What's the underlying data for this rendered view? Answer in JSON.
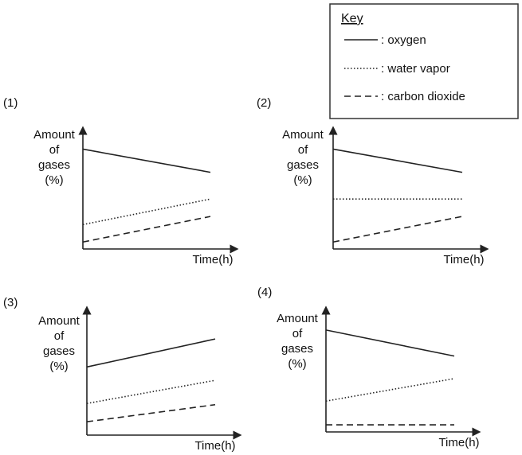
{
  "key": {
    "title": "Key",
    "entries": [
      {
        "label": ": oxygen",
        "style": "solid"
      },
      {
        "label": ": water vapor",
        "style": "dotted"
      },
      {
        "label": ": carbon dioxide",
        "style": "dashed"
      }
    ]
  },
  "chart_data": [
    {
      "type": "line",
      "option": "(1)",
      "ylabel": [
        "Amount",
        "of",
        "gases",
        "(%)"
      ],
      "xlabel": "Time(h)",
      "xlim": [
        0,
        1
      ],
      "ylim": [
        0,
        1
      ],
      "series": [
        {
          "name": "oxygen",
          "style": "solid",
          "x": [
            0,
            1
          ],
          "y": [
            0.86,
            0.66
          ]
        },
        {
          "name": "water vapor",
          "style": "dotted",
          "x": [
            0,
            1
          ],
          "y": [
            0.21,
            0.43
          ]
        },
        {
          "name": "carbon dioxide",
          "style": "dashed",
          "x": [
            0,
            1
          ],
          "y": [
            0.06,
            0.28
          ]
        }
      ]
    },
    {
      "type": "line",
      "option": "(2)",
      "ylabel": [
        "Amount",
        "of",
        "gases",
        "(%)"
      ],
      "xlabel": "Time(h)",
      "xlim": [
        0,
        1
      ],
      "ylim": [
        0,
        1
      ],
      "series": [
        {
          "name": "oxygen",
          "style": "solid",
          "x": [
            0,
            1
          ],
          "y": [
            0.86,
            0.66
          ]
        },
        {
          "name": "water vapor",
          "style": "dotted",
          "x": [
            0,
            1
          ],
          "y": [
            0.43,
            0.43
          ]
        },
        {
          "name": "carbon dioxide",
          "style": "dashed",
          "x": [
            0,
            1
          ],
          "y": [
            0.06,
            0.28
          ]
        }
      ]
    },
    {
      "type": "line",
      "option": "(3)",
      "ylabel": [
        "Amount",
        "of",
        "gases",
        "(%)"
      ],
      "xlabel": "Time(h)",
      "xlim": [
        0,
        1
      ],
      "ylim": [
        0,
        1
      ],
      "series": [
        {
          "name": "oxygen",
          "style": "solid",
          "x": [
            0,
            1
          ],
          "y": [
            0.56,
            0.79
          ]
        },
        {
          "name": "water vapor",
          "style": "dotted",
          "x": [
            0,
            1
          ],
          "y": [
            0.26,
            0.45
          ]
        },
        {
          "name": "carbon dioxide",
          "style": "dashed",
          "x": [
            0,
            1
          ],
          "y": [
            0.11,
            0.25
          ]
        }
      ]
    },
    {
      "type": "line",
      "option": "(4)",
      "ylabel": [
        "Amount",
        "of",
        "gases",
        "(%)"
      ],
      "xlabel": "Time(h)",
      "xlim": [
        0,
        1
      ],
      "ylim": [
        0,
        1
      ],
      "series": [
        {
          "name": "oxygen",
          "style": "solid",
          "x": [
            0,
            1
          ],
          "y": [
            0.86,
            0.64
          ]
        },
        {
          "name": "water vapor",
          "style": "dotted",
          "x": [
            0,
            1
          ],
          "y": [
            0.26,
            0.45
          ]
        },
        {
          "name": "carbon dioxide",
          "style": "dashed",
          "x": [
            0,
            1
          ],
          "y": [
            0.06,
            0.06
          ]
        }
      ]
    }
  ]
}
